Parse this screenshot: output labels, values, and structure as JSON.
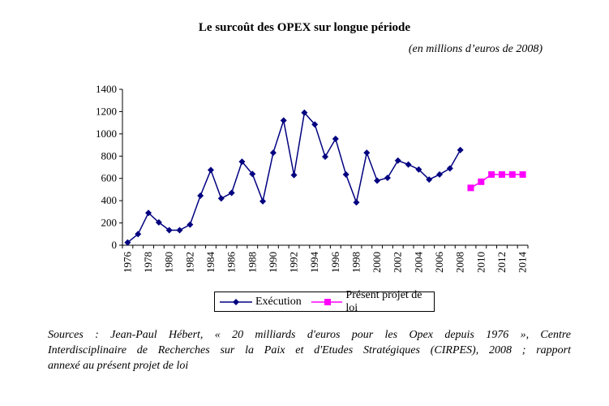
{
  "chart_data": {
    "type": "line",
    "title": "Le surcoût des OPEX sur longue période",
    "subtitle": "(en millions d’euros de 2008)",
    "xlabel": "",
    "ylabel": "",
    "ylim": [
      0,
      1400
    ],
    "yticks": [
      0,
      200,
      400,
      600,
      800,
      1000,
      1200,
      1400
    ],
    "xlim": [
      1976,
      2014
    ],
    "xtick_labels": [
      "1976",
      "1978",
      "1980",
      "1982",
      "1984",
      "1986",
      "1988",
      "1990",
      "1992",
      "1994",
      "1996",
      "1998",
      "2000",
      "2002",
      "2004",
      "2006",
      "2008",
      "2010",
      "2012",
      "2014"
    ],
    "grid": false,
    "legend_position": "bottom",
    "series": [
      {
        "name": "Exécution",
        "color": "#000080",
        "marker": "diamond",
        "x": [
          1976,
          1977,
          1978,
          1979,
          1980,
          1981,
          1982,
          1983,
          1984,
          1985,
          1986,
          1987,
          1988,
          1989,
          1990,
          1991,
          1992,
          1993,
          1994,
          1995,
          1996,
          1997,
          1998,
          1999,
          2000,
          2001,
          2002,
          2003,
          2004,
          2005,
          2006,
          2007,
          2008
        ],
        "values": [
          25,
          100,
          290,
          205,
          135,
          135,
          185,
          445,
          675,
          420,
          470,
          750,
          640,
          395,
          830,
          1120,
          630,
          1190,
          1085,
          795,
          955,
          635,
          385,
          830,
          580,
          605,
          760,
          725,
          680,
          590,
          635,
          690,
          855
        ]
      },
      {
        "name": "Présent projet de loi",
        "color": "#ff00ff",
        "marker": "square",
        "x": [
          2009,
          2010,
          2011,
          2012,
          2013,
          2014
        ],
        "values": [
          515,
          570,
          635,
          635,
          635,
          635
        ]
      }
    ]
  },
  "sources": {
    "line1": "Sources : Jean-Paul Hébert, « 20 milliards d'euros pour les Opex depuis 1976 », Centre",
    "line2": "Interdisciplinaire de Recherches sur la Paix et d'Etudes Stratégiques (CIRPES), 2008 ; rapport",
    "line3": "annexé au présent projet de loi"
  }
}
